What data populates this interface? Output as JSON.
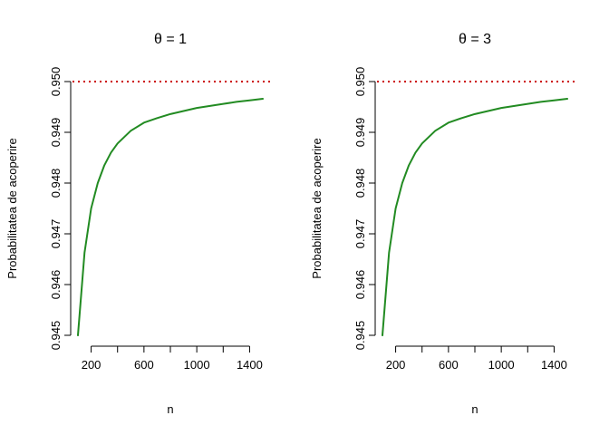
{
  "chart_data": [
    {
      "type": "line",
      "title": "θ = 1",
      "xlabel": "n",
      "ylabel": "Probabilitatea de acoperire",
      "xlim": [
        100,
        1500
      ],
      "ylim": [
        0.945,
        0.95
      ],
      "xticks": [
        200,
        400,
        600,
        800,
        1000,
        1200,
        1400
      ],
      "xtick_labels": [
        "200",
        "",
        "600",
        "",
        "1000",
        "",
        "1400"
      ],
      "yticks": [
        0.945,
        0.946,
        0.947,
        0.948,
        0.949,
        0.95
      ],
      "ytick_labels": [
        "0.945",
        "0.946",
        "0.947",
        "0.948",
        "0.949",
        "0.950"
      ],
      "reference_line": {
        "y": 0.95,
        "style": "dotted",
        "color": "#cc0000"
      },
      "series": [
        {
          "color": "#228b22",
          "x": [
            100,
            150,
            200,
            250,
            300,
            350,
            400,
            500,
            600,
            700,
            800,
            900,
            1000,
            1100,
            1200,
            1300,
            1400,
            1500
          ],
          "y": [
            0.945,
            0.94663,
            0.9475,
            0.948,
            0.94835,
            0.9486,
            0.94878,
            0.94903,
            0.94919,
            0.94928,
            0.94936,
            0.94942,
            0.94948,
            0.94952,
            0.94956,
            0.9496,
            0.94963,
            0.94966
          ]
        }
      ]
    },
    {
      "type": "line",
      "title": "θ = 3",
      "xlabel": "n",
      "ylabel": "Probabilitatea de acoperire",
      "xlim": [
        100,
        1500
      ],
      "ylim": [
        0.945,
        0.95
      ],
      "xticks": [
        200,
        400,
        600,
        800,
        1000,
        1200,
        1400
      ],
      "xtick_labels": [
        "200",
        "",
        "600",
        "",
        "1000",
        "",
        "1400"
      ],
      "yticks": [
        0.945,
        0.946,
        0.947,
        0.948,
        0.949,
        0.95
      ],
      "ytick_labels": [
        "0.945",
        "0.946",
        "0.947",
        "0.948",
        "0.949",
        "0.950"
      ],
      "reference_line": {
        "y": 0.95,
        "style": "dotted",
        "color": "#cc0000"
      },
      "series": [
        {
          "color": "#228b22",
          "x": [
            100,
            150,
            200,
            250,
            300,
            350,
            400,
            500,
            600,
            700,
            800,
            900,
            1000,
            1100,
            1200,
            1300,
            1400,
            1500
          ],
          "y": [
            0.945,
            0.94663,
            0.9475,
            0.948,
            0.94835,
            0.9486,
            0.94878,
            0.94903,
            0.94919,
            0.94928,
            0.94936,
            0.94942,
            0.94948,
            0.94952,
            0.94956,
            0.9496,
            0.94963,
            0.94966
          ]
        }
      ]
    }
  ]
}
